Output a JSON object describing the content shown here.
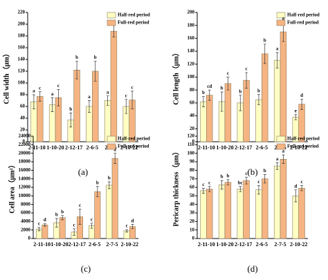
{
  "chart_data": [
    {
      "type": "bar",
      "ylabel": "Cell width（μm）",
      "panel_label": "(a)",
      "categories": [
        "2-11-10",
        "1-10-20",
        "2-12-17",
        "2-6-5",
        "2-7-5",
        "2-10-22"
      ],
      "series": [
        {
          "name": "Half-red period",
          "color": "#ffffc4",
          "values": [
            68,
            63,
            37,
            60,
            70,
            60
          ],
          "errors": [
            12,
            12,
            12,
            10,
            8,
            12
          ],
          "letters": [
            "a",
            "a",
            "b",
            "a",
            "a",
            "c"
          ]
        },
        {
          "name": "Full-red period",
          "color": "#f5b482",
          "values": [
            77,
            75,
            122,
            120,
            188,
            71
          ],
          "errors": [
            8,
            14,
            15,
            17,
            10,
            15
          ],
          "letters": [
            "c",
            "c",
            "b",
            "b",
            "a",
            "c"
          ]
        }
      ],
      "ylim": [
        0,
        220
      ],
      "yticks": [
        0,
        20,
        40,
        60,
        80,
        100,
        120,
        140,
        160,
        180,
        200,
        220
      ],
      "legend": "upper right"
    },
    {
      "type": "bar",
      "ylabel": "Cell length（μm）",
      "panel_label": "(b)",
      "categories": [
        "2-11-10",
        "1-10-20",
        "2-12-17",
        "2-6-5",
        "2-7-5",
        "2-10-22"
      ],
      "series": [
        {
          "name": "Half-red period",
          "color": "#ffffc4",
          "values": [
            62,
            62,
            60,
            65,
            126,
            38
          ],
          "errors": [
            8,
            15,
            12,
            8,
            12,
            4
          ],
          "letters": [
            "b",
            "b",
            "b",
            "b",
            "a",
            "e"
          ]
        },
        {
          "name": "Full-red period",
          "color": "#f5b482",
          "values": [
            72,
            90,
            95,
            136,
            170,
            58
          ],
          "errors": [
            8,
            10,
            12,
            15,
            15,
            8
          ],
          "letters": [
            "cd",
            "c",
            "c",
            "b",
            "a",
            "d"
          ]
        }
      ],
      "ylim": [
        0,
        200
      ],
      "yticks": [
        0,
        20,
        40,
        60,
        80,
        100,
        120,
        140,
        160,
        180,
        200
      ],
      "legend": "upper right"
    },
    {
      "type": "bar",
      "ylabel": "Cell area（μm²）",
      "panel_label": "(c)",
      "categories": [
        "2-11-10",
        "1-10-20",
        "2-12-17",
        "2-6-5",
        "2-7-5",
        "2-10-22"
      ],
      "series": [
        {
          "name": "Half-red period",
          "color": "#ffffc4",
          "values": [
            2200,
            3700,
            1500,
            3000,
            12500,
            1800
          ],
          "errors": [
            400,
            1000,
            800,
            600,
            800,
            300
          ],
          "letters": [
            "c",
            "b",
            "c",
            "c",
            "b",
            "c"
          ]
        },
        {
          "name": "Full-red period",
          "color": "#f5b482",
          "values": [
            3200,
            4900,
            5100,
            11000,
            18800,
            2800
          ],
          "errors": [
            300,
            500,
            1800,
            1200,
            1200,
            500
          ],
          "letters": [
            "d",
            "b",
            "c",
            "b",
            "a",
            "d"
          ]
        }
      ],
      "ylim": [
        0,
        24000
      ],
      "yticks": [
        0,
        2000,
        4000,
        6000,
        8000,
        10000,
        12000,
        14000,
        16000,
        18000,
        20000,
        22000,
        24000
      ],
      "legend": "upper right"
    },
    {
      "type": "bar",
      "ylabel": "Pericarp thickness（μm）",
      "panel_label": "(d)",
      "categories": [
        "2-11-10",
        "1-10-20",
        "2-12-17",
        "2-6-5",
        "2-7-5",
        "2-10-22"
      ],
      "series": [
        {
          "name": "Half-red period",
          "color": "#ffffc4",
          "values": [
            56,
            63,
            58,
            57,
            85,
            50
          ],
          "errors": [
            3,
            5,
            3,
            5,
            4,
            7
          ],
          "letters": [
            "c",
            "b",
            "bc",
            "c",
            "a",
            "d"
          ]
        },
        {
          "name": "Full-red period",
          "color": "#f5b482",
          "values": [
            58,
            66,
            68,
            70,
            93,
            59
          ],
          "errors": [
            3,
            3,
            4,
            5,
            5,
            3
          ],
          "letters": [
            "c",
            "b",
            "c",
            "b",
            "a",
            "c"
          ]
        }
      ],
      "ylim": [
        0,
        120
      ],
      "yticks": [
        0,
        10,
        20,
        30,
        40,
        50,
        60,
        70,
        80,
        90,
        100,
        110,
        120
      ],
      "legend": "upper right"
    }
  ]
}
